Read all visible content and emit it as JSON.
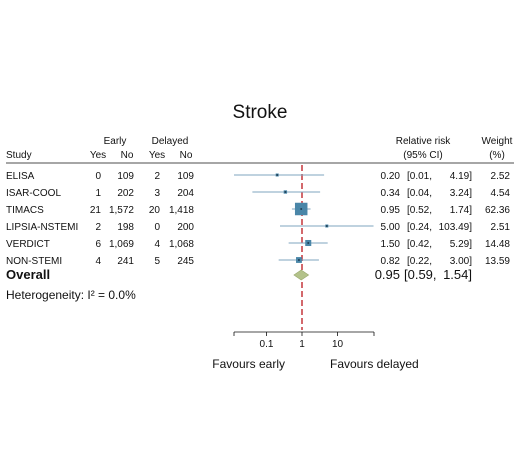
{
  "chart_data": {
    "type": "forest",
    "title": "Stroke",
    "columns": {
      "study": "Study",
      "early": "Early",
      "delayed": "Delayed",
      "yes": "Yes",
      "no": "No",
      "rr_line1": "Relative risk",
      "rr_line2": "(95% CI)",
      "w_line1": "Weight",
      "w_line2": "(%)"
    },
    "studies": [
      {
        "name": "ELISA",
        "early_yes": "0",
        "early_no": "109",
        "delayed_yes": "2",
        "delayed_no": "109",
        "rr": 0.2,
        "lo": 0.01,
        "hi": 4.19,
        "rr_text": "0.20",
        "lo_text": "[0.01,",
        "hi_text": "4.19]",
        "weight": 2.52,
        "weight_text": "2.52"
      },
      {
        "name": "ISAR-COOL",
        "early_yes": "1",
        "early_no": "202",
        "delayed_yes": "3",
        "delayed_no": "204",
        "rr": 0.34,
        "lo": 0.04,
        "hi": 3.24,
        "rr_text": "0.34",
        "lo_text": "[0.04,",
        "hi_text": "3.24]",
        "weight": 4.54,
        "weight_text": "4.54"
      },
      {
        "name": "TIMACS",
        "early_yes": "21",
        "early_no": "1,572",
        "delayed_yes": "20",
        "delayed_no": "1,418",
        "rr": 0.95,
        "lo": 0.52,
        "hi": 1.74,
        "rr_text": "0.95",
        "lo_text": "[0.52,",
        "hi_text": "1.74]",
        "weight": 62.36,
        "weight_text": "62.36"
      },
      {
        "name": "LIPSIA-NSTEMI",
        "early_yes": "2",
        "early_no": "198",
        "delayed_yes": "0",
        "delayed_no": "200",
        "rr": 5.0,
        "lo": 0.24,
        "hi": 103.49,
        "rr_text": "5.00",
        "lo_text": "[0.24,",
        "hi_text": "103.49]",
        "weight": 2.51,
        "weight_text": "2.51"
      },
      {
        "name": "VERDICT",
        "early_yes": "6",
        "early_no": "1,069",
        "delayed_yes": "4",
        "delayed_no": "1,068",
        "rr": 1.5,
        "lo": 0.42,
        "hi": 5.29,
        "rr_text": "1.50",
        "lo_text": "[0.42,",
        "hi_text": "5.29]",
        "weight": 14.48,
        "weight_text": "14.48"
      },
      {
        "name": "NON-STEMI",
        "early_yes": "4",
        "early_no": "241",
        "delayed_yes": "5",
        "delayed_no": "245",
        "rr": 0.82,
        "lo": 0.22,
        "hi": 3.0,
        "rr_text": "0.82",
        "lo_text": "[0.22,",
        "hi_text": "3.00]",
        "weight": 13.59,
        "weight_text": "13.59"
      }
    ],
    "overall": {
      "label": "Overall",
      "rr": 0.95,
      "lo": 0.59,
      "hi": 1.54,
      "rr_text": "0.95",
      "lo_text": "[0.59,",
      "hi_text": "1.54]"
    },
    "heterogeneity": "Heterogeneity: I² = 0.0%",
    "x_axis": {
      "scale": "log",
      "range": [
        0.0316,
        1000
      ],
      "ticks": [
        0.1,
        1,
        10
      ],
      "tick_labels": [
        "0.1",
        "1",
        "10"
      ]
    },
    "favours_left": "Favours early",
    "favours_right": "Favours delayed",
    "colors": {
      "box": "#4a86a8",
      "ci": "#7fa6bf",
      "reference": "#c0282e",
      "diamond": "#b3c28a",
      "text": "#111111"
    }
  }
}
